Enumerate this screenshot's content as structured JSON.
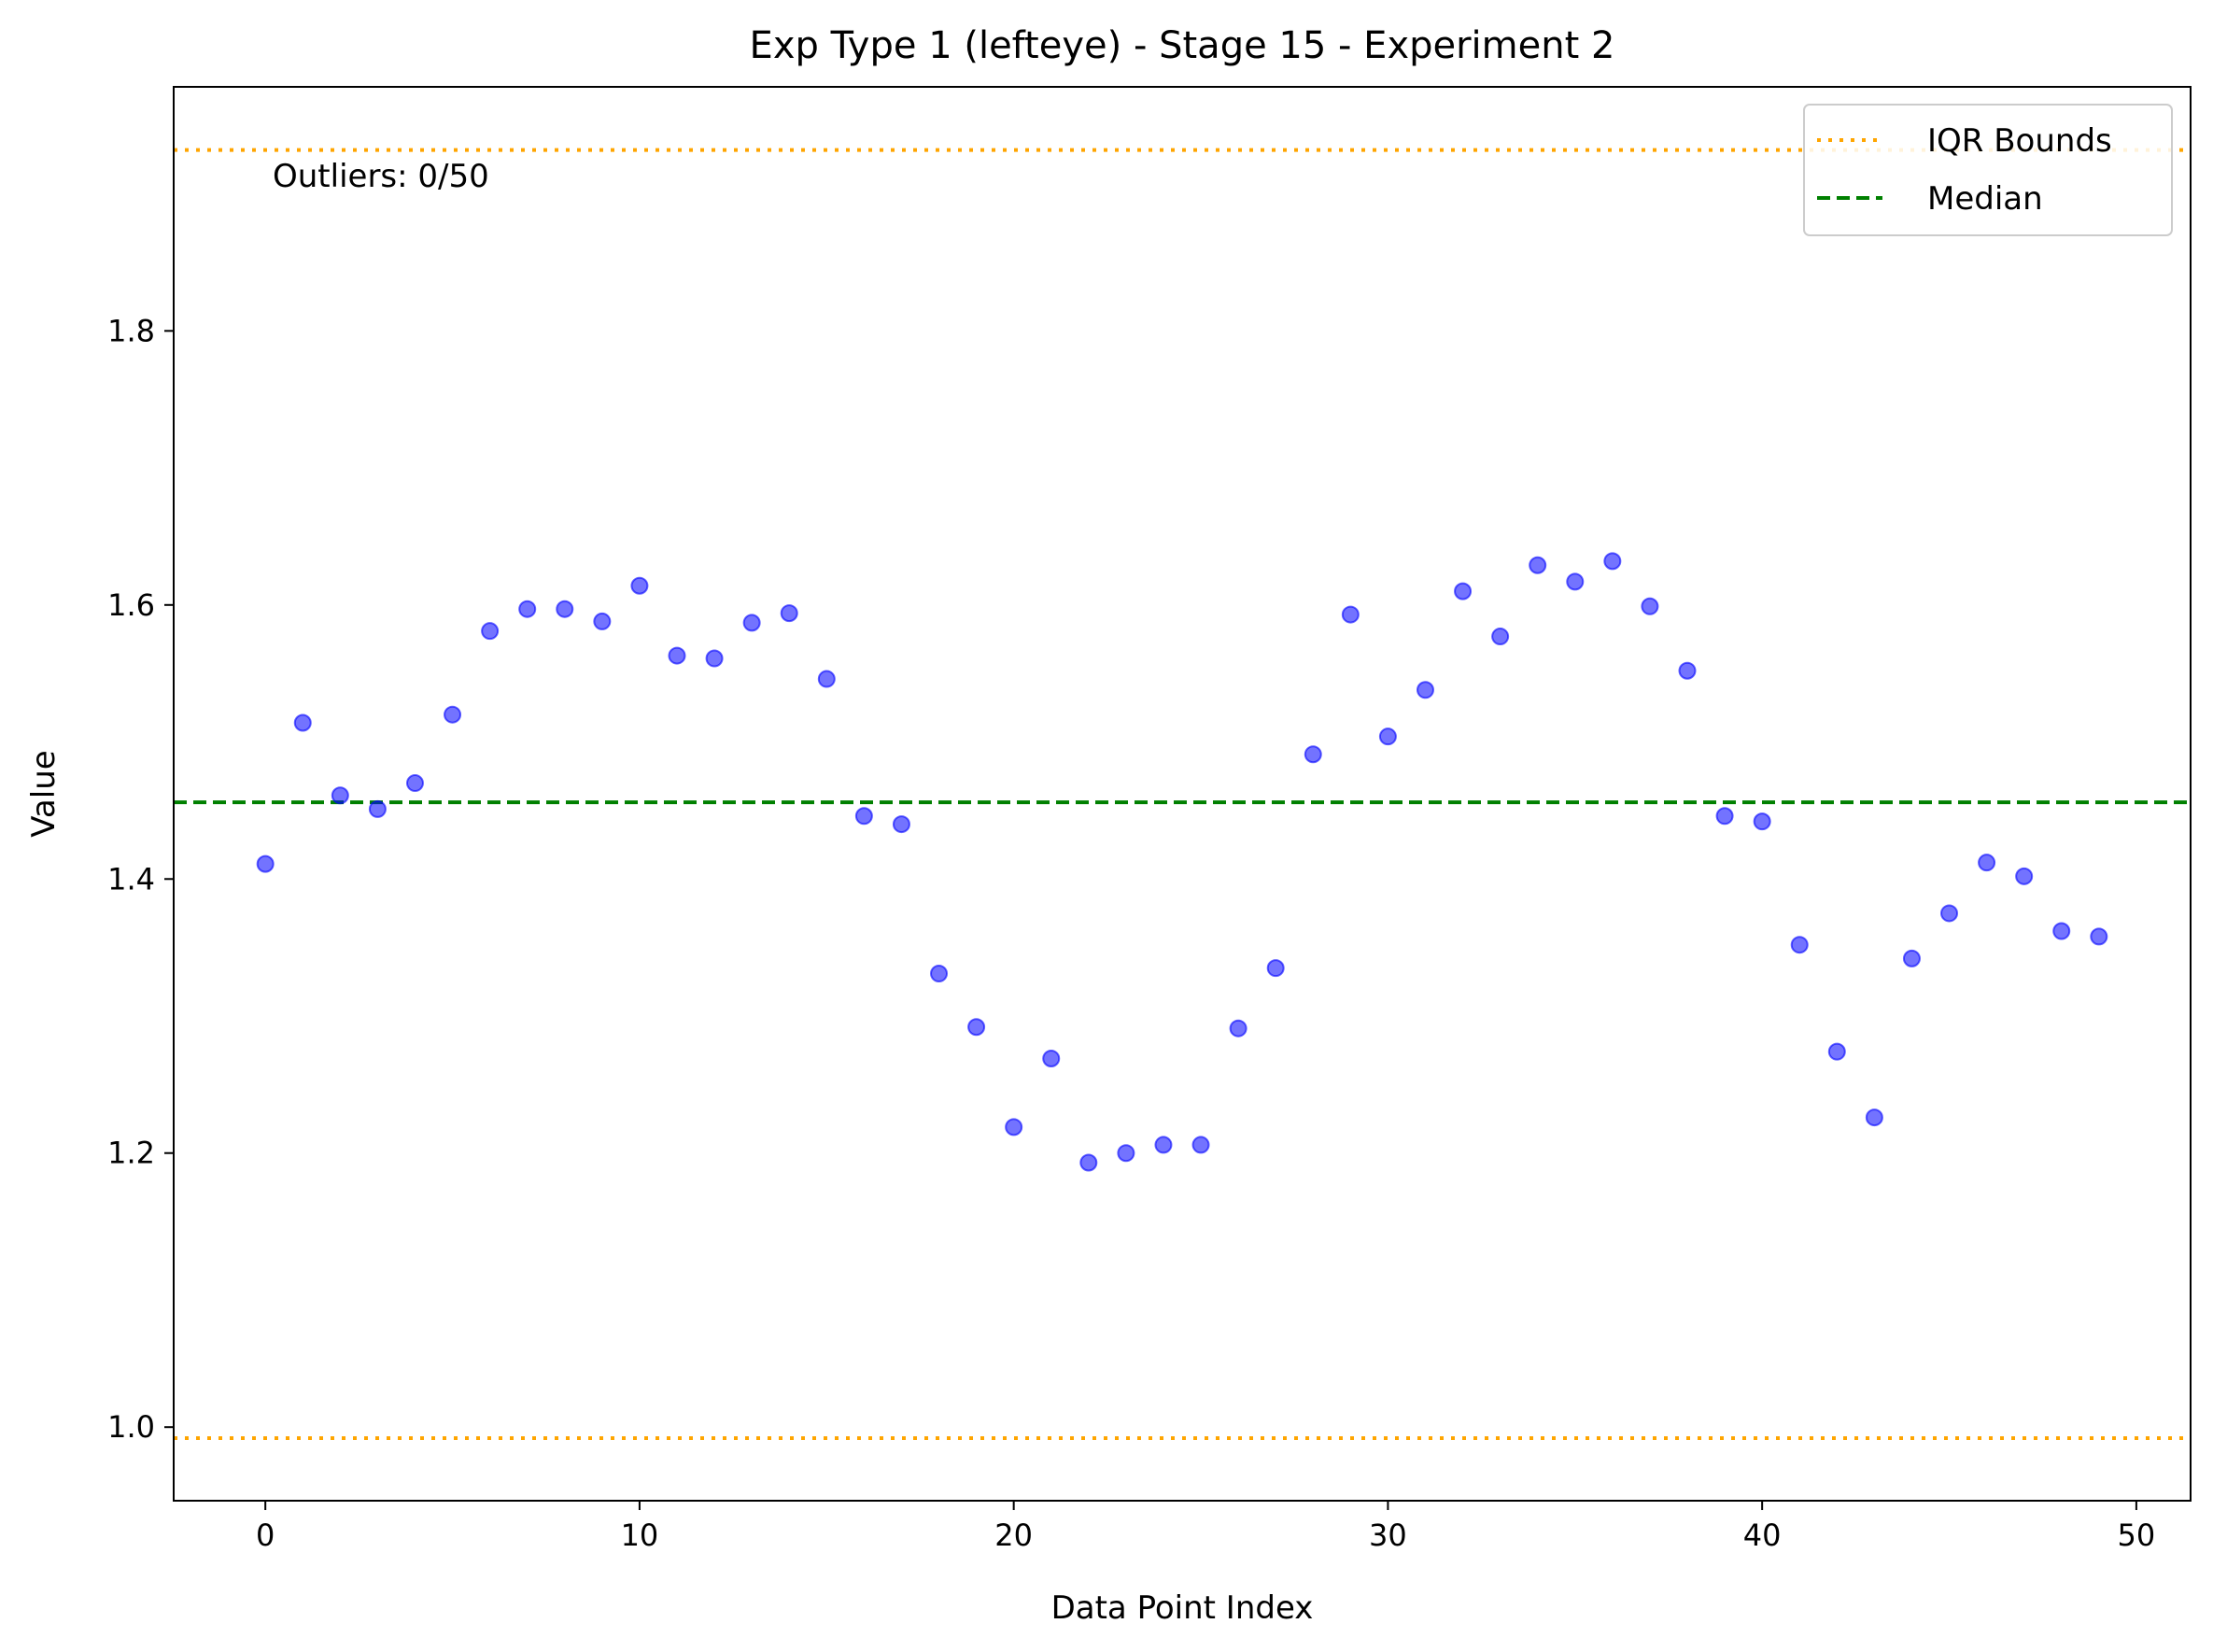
{
  "chart_data": {
    "type": "scatter",
    "title": "Exp Type 1 (lefteye) - Stage 15 - Experiment 2",
    "xlabel": "Data Point Index",
    "ylabel": "Value",
    "xlim": [
      -2.45,
      51.45
    ],
    "ylim": [
      0.9463,
      1.9781
    ],
    "xticks": [
      0,
      10,
      20,
      30,
      40,
      50
    ],
    "yticks": [
      1.0,
      1.2,
      1.4,
      1.6,
      1.8
    ],
    "xtick_labels": [
      "0",
      "10",
      "20",
      "30",
      "40",
      "50"
    ],
    "ytick_labels": [
      "1.0",
      "1.2",
      "1.4",
      "1.6",
      "1.8"
    ],
    "grid": false,
    "legend_position": "top-right",
    "annotation": "Outliers: 0/50",
    "series": [
      {
        "kind": "points",
        "color": "#0000ff",
        "x": [
          0,
          1,
          2,
          3,
          4,
          5,
          6,
          7,
          8,
          9,
          10,
          11,
          12,
          13,
          14,
          15,
          16,
          17,
          18,
          19,
          20,
          21,
          22,
          23,
          24,
          25,
          26,
          27,
          28,
          29,
          30,
          31,
          32,
          33,
          34,
          35,
          36,
          37,
          38,
          39,
          40,
          41,
          42,
          43,
          44,
          45,
          46,
          47,
          48,
          49
        ],
        "y": [
          1.411,
          1.514,
          1.461,
          1.451,
          1.47,
          1.52,
          1.581,
          1.597,
          1.597,
          1.588,
          1.614,
          1.563,
          1.561,
          1.587,
          1.594,
          1.546,
          1.446,
          1.44,
          1.331,
          1.292,
          1.219,
          1.269,
          1.193,
          1.2,
          1.206,
          1.206,
          1.291,
          1.335,
          1.491,
          1.593,
          1.504,
          1.538,
          1.61,
          1.577,
          1.629,
          1.617,
          1.632,
          1.599,
          1.552,
          1.446,
          1.442,
          1.352,
          1.274,
          1.226,
          1.342,
          1.375,
          1.412,
          1.402,
          1.362,
          1.358
        ]
      }
    ],
    "reference_lines": [
      {
        "name": "IQR Bounds",
        "style": "dotted",
        "color": "#ffa500",
        "y": 1.932
      },
      {
        "name": "IQR Bounds",
        "style": "dotted",
        "color": "#ffa500",
        "y": 0.992
      },
      {
        "name": "Median",
        "style": "dashed",
        "color": "#008000",
        "y": 1.456
      }
    ],
    "legend": [
      {
        "label": "IQR Bounds",
        "style": "dotted",
        "color": "#ffa500"
      },
      {
        "label": "Median",
        "style": "dashed",
        "color": "#008000"
      }
    ]
  }
}
